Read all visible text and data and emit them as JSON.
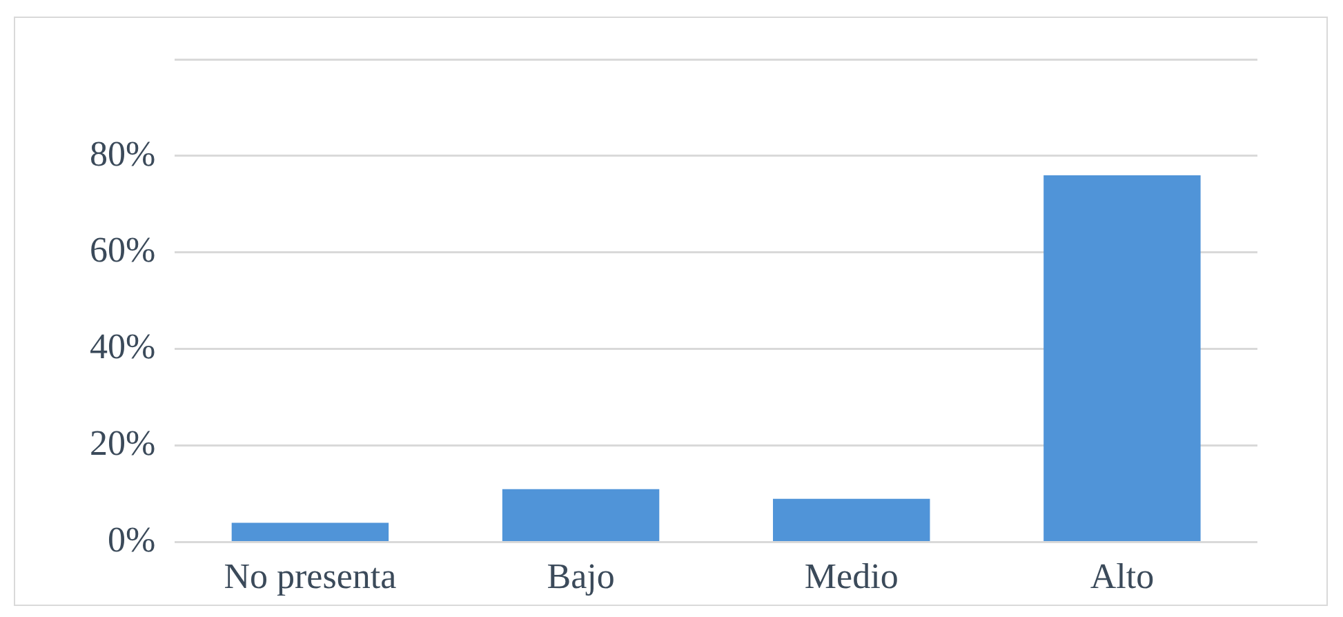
{
  "chart_data": {
    "type": "bar",
    "categories": [
      "No presenta",
      "Bajo",
      "Medio",
      "Alto"
    ],
    "values": [
      4,
      11,
      9,
      76
    ],
    "color": "#5094d8",
    "ylim": [
      0,
      100
    ],
    "yticks": [
      {
        "value": 0,
        "label": "0%"
      },
      {
        "value": 20,
        "label": "20%"
      },
      {
        "value": 40,
        "label": "40%"
      },
      {
        "value": 60,
        "label": "60%"
      },
      {
        "value": 80,
        "label": "80%"
      },
      {
        "value": 100,
        "label": null
      }
    ],
    "grid": "y",
    "legend": false
  }
}
